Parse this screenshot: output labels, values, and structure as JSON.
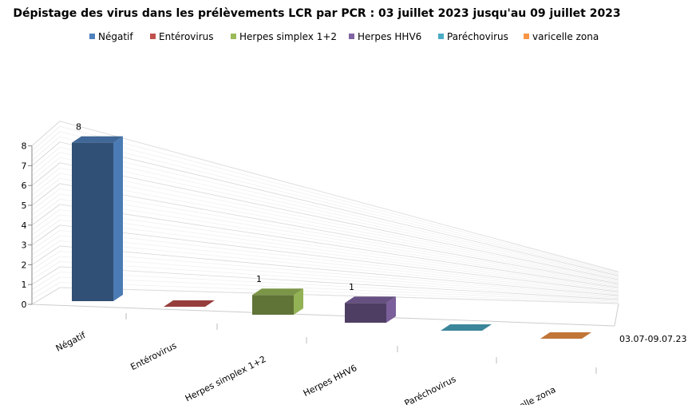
{
  "chart_data": {
    "type": "bar",
    "title": "Dépistage des virus dans les prélèvements LCR par PCR : 03 juillet 2023 jusqu'au   09 juillet 2023",
    "categories": [
      "Négatif",
      "Entérovirus",
      "Herpes simplex 1+2",
      "Herpes HHV6",
      "Paréchovirus",
      "varicelle zona"
    ],
    "series_axis_label": "03.07-09.07.23",
    "values": [
      8,
      0,
      1,
      1,
      0,
      0
    ],
    "data_labels": [
      "8",
      "",
      "1",
      "1",
      "",
      ""
    ],
    "colors": [
      "#4F81BD",
      "#C0504D",
      "#9BBB59",
      "#8064A2",
      "#4BACC6",
      "#F79646"
    ],
    "yticks": [
      "0",
      "1",
      "2",
      "3",
      "4",
      "5",
      "6",
      "7",
      "8"
    ],
    "ylim": [
      0,
      8
    ],
    "legend": [
      "Négatif",
      "Entérovirus",
      "Herpes simplex 1+2",
      "Herpes HHV6",
      "Paréchovirus",
      "varicelle zona"
    ],
    "legend_position": "top",
    "grid": true,
    "style": "3D column"
  }
}
